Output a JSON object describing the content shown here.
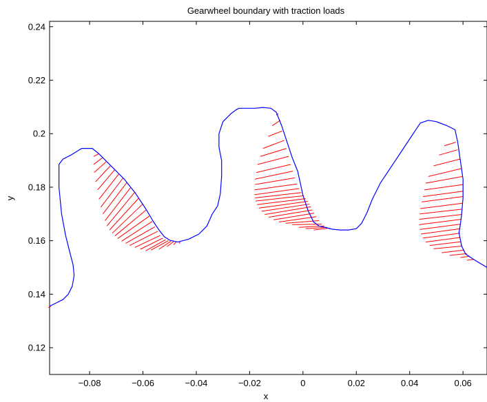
{
  "chart_data": {
    "type": "line",
    "title": "Gearwheel boundary with traction loads",
    "xlabel": "x",
    "ylabel": "y",
    "xlim": [
      -0.095,
      0.069
    ],
    "ylim": [
      0.11,
      0.242
    ],
    "xticks": [
      -0.08,
      -0.06,
      -0.04,
      -0.02,
      0,
      0.02,
      0.04,
      0.06
    ],
    "xtick_labels": [
      "−0.08",
      "−0.06",
      "−0.04",
      "−0.02",
      "0",
      "0.02",
      "0.04",
      "0.06"
    ],
    "yticks": [
      0.12,
      0.14,
      0.16,
      0.18,
      0.2,
      0.22,
      0.24
    ],
    "ytick_labels": [
      "0.12",
      "0.14",
      "0.16",
      "0.18",
      "0.2",
      "0.22",
      "0.24"
    ],
    "grid": false,
    "boundary": {
      "color": "#0000ff",
      "x": [
        -0.095,
        -0.093,
        -0.09,
        -0.088,
        -0.0865,
        -0.0858,
        -0.0862,
        -0.0875,
        -0.089,
        -0.0905,
        -0.0915,
        -0.0915,
        -0.09,
        -0.087,
        -0.083,
        -0.079,
        -0.0765,
        -0.072,
        -0.067,
        -0.063,
        -0.059,
        -0.056,
        -0.054,
        -0.052,
        -0.05,
        -0.047,
        -0.043,
        -0.039,
        -0.036,
        -0.034,
        -0.032,
        -0.031,
        -0.0305,
        -0.0305,
        -0.0315,
        -0.0315,
        -0.03,
        -0.027,
        -0.025,
        -0.024,
        -0.021,
        -0.018,
        -0.015,
        -0.012,
        -0.01,
        -0.008,
        -0.006,
        -0.004,
        -0.002,
        -0.001,
        0,
        0.001,
        0.002,
        0.003,
        0.004,
        0.006,
        0.009,
        0.011,
        0.014,
        0.017,
        0.02,
        0.022,
        0.024,
        0.026,
        0.029,
        0.033,
        0.037,
        0.04,
        0.042,
        0.044,
        0.047,
        0.05,
        0.054,
        0.057,
        0.058,
        0.059,
        0.06,
        0.06,
        0.0595,
        0.059,
        0.0585,
        0.0595,
        0.061,
        0.064,
        0.069
      ],
      "y": [
        0.1355,
        0.1365,
        0.138,
        0.14,
        0.143,
        0.147,
        0.151,
        0.156,
        0.162,
        0.17,
        0.18,
        0.1885,
        0.1905,
        0.192,
        0.1945,
        0.1945,
        0.1925,
        0.188,
        0.183,
        0.178,
        0.172,
        0.167,
        0.164,
        0.1615,
        0.1602,
        0.1595,
        0.1605,
        0.1625,
        0.1655,
        0.17,
        0.173,
        0.1775,
        0.184,
        0.19,
        0.195,
        0.2,
        0.2045,
        0.2075,
        0.209,
        0.2095,
        0.2095,
        0.2095,
        0.2098,
        0.2095,
        0.208,
        0.203,
        0.197,
        0.191,
        0.186,
        0.1815,
        0.177,
        0.174,
        0.171,
        0.169,
        0.167,
        0.1655,
        0.1648,
        0.1643,
        0.164,
        0.164,
        0.1645,
        0.1665,
        0.1705,
        0.1755,
        0.1815,
        0.1875,
        0.1935,
        0.198,
        0.201,
        0.204,
        0.205,
        0.2045,
        0.203,
        0.2015,
        0.197,
        0.19,
        0.183,
        0.176,
        0.17,
        0.166,
        0.163,
        0.158,
        0.155,
        0.153,
        0.15
      ]
    },
    "traction_loads": {
      "color": "#ff0000",
      "segments": [
        [
          -0.0945,
          0.1355,
          -0.0955,
          0.135
        ],
        [
          -0.0765,
          0.1925,
          -0.0785,
          0.1915
        ],
        [
          -0.0752,
          0.191,
          -0.0785,
          0.1885
        ],
        [
          -0.0738,
          0.1895,
          -0.0783,
          0.1855
        ],
        [
          -0.0722,
          0.188,
          -0.0778,
          0.182
        ],
        [
          -0.0706,
          0.1865,
          -0.077,
          0.179
        ],
        [
          -0.069,
          0.185,
          -0.0765,
          0.1755
        ],
        [
          -0.0675,
          0.1834,
          -0.0758,
          0.1725
        ],
        [
          -0.066,
          0.1818,
          -0.075,
          0.17
        ],
        [
          -0.0645,
          0.18,
          -0.0742,
          0.1675
        ],
        [
          -0.063,
          0.1782,
          -0.0735,
          0.1655
        ],
        [
          -0.0615,
          0.176,
          -0.0725,
          0.164
        ],
        [
          -0.06,
          0.1738,
          -0.0715,
          0.1628
        ],
        [
          -0.0588,
          0.1715,
          -0.0705,
          0.1618
        ],
        [
          -0.0576,
          0.1692,
          -0.0695,
          0.1608
        ],
        [
          -0.0565,
          0.1672,
          -0.068,
          0.1598
        ],
        [
          -0.0555,
          0.1652,
          -0.0665,
          0.159
        ],
        [
          -0.0545,
          0.1635,
          -0.065,
          0.1582
        ],
        [
          -0.0535,
          0.162,
          -0.063,
          0.1575
        ],
        [
          -0.0525,
          0.161,
          -0.061,
          0.1568
        ],
        [
          -0.0515,
          0.1604,
          -0.059,
          0.1562
        ],
        [
          -0.0505,
          0.16,
          -0.057,
          0.1565
        ],
        [
          -0.0495,
          0.1598,
          -0.054,
          0.1568
        ],
        [
          -0.0485,
          0.1597,
          -0.051,
          0.1578
        ],
        [
          -0.0475,
          0.1596,
          -0.0485,
          0.1585
        ],
        [
          -0.046,
          0.1595,
          -0.0465,
          0.159
        ],
        [
          -0.0092,
          0.2075,
          -0.01,
          0.207
        ],
        [
          -0.0085,
          0.205,
          -0.0115,
          0.203
        ],
        [
          -0.0078,
          0.201,
          -0.013,
          0.199
        ],
        [
          -0.007,
          0.1975,
          -0.015,
          0.1945
        ],
        [
          -0.0062,
          0.1945,
          -0.016,
          0.1915
        ],
        [
          -0.0054,
          0.1915,
          -0.017,
          0.1885
        ],
        [
          -0.0046,
          0.1885,
          -0.0175,
          0.1855
        ],
        [
          -0.0038,
          0.186,
          -0.018,
          0.183
        ],
        [
          -0.003,
          0.1835,
          -0.018,
          0.181
        ],
        [
          -0.0022,
          0.1812,
          -0.0182,
          0.179
        ],
        [
          -0.0014,
          0.1795,
          -0.0182,
          0.1772
        ],
        [
          -0.0006,
          0.178,
          -0.018,
          0.176
        ],
        [
          0.0002,
          0.1768,
          -0.0178,
          0.1748
        ],
        [
          0.001,
          0.1757,
          -0.0172,
          0.1735
        ],
        [
          0.0018,
          0.1747,
          -0.0165,
          0.1722
        ],
        [
          0.0025,
          0.1737,
          -0.0155,
          0.171
        ],
        [
          0.003,
          0.1727,
          -0.0143,
          0.1698
        ],
        [
          0.0035,
          0.1715,
          -0.0128,
          0.1688
        ],
        [
          0.0042,
          0.1703,
          -0.011,
          0.1678
        ],
        [
          0.005,
          0.169,
          -0.009,
          0.167
        ],
        [
          0.006,
          0.1675,
          -0.0065,
          0.1665
        ],
        [
          0.007,
          0.1662,
          -0.004,
          0.166
        ],
        [
          0.008,
          0.1655,
          -0.0015,
          0.165
        ],
        [
          0.009,
          0.165,
          0.001,
          0.1645
        ],
        [
          0.01,
          0.1647,
          0.004,
          0.164
        ],
        [
          0.0573,
          0.1968,
          0.053,
          0.1955
        ],
        [
          0.058,
          0.194,
          0.051,
          0.192
        ],
        [
          0.0588,
          0.1905,
          0.049,
          0.188
        ],
        [
          0.0595,
          0.187,
          0.047,
          0.184
        ],
        [
          0.0598,
          0.184,
          0.046,
          0.1815
        ],
        [
          0.06,
          0.181,
          0.0455,
          0.179
        ],
        [
          0.06,
          0.1785,
          0.045,
          0.1765
        ],
        [
          0.06,
          0.1765,
          0.0445,
          0.1745
        ],
        [
          0.0598,
          0.174,
          0.044,
          0.172
        ],
        [
          0.0596,
          0.1718,
          0.0438,
          0.17
        ],
        [
          0.0594,
          0.1698,
          0.0436,
          0.168
        ],
        [
          0.0592,
          0.168,
          0.0436,
          0.166
        ],
        [
          0.0591,
          0.1662,
          0.0438,
          0.1642
        ],
        [
          0.059,
          0.1645,
          0.0442,
          0.1625
        ],
        [
          0.0589,
          0.1628,
          0.045,
          0.161
        ],
        [
          0.0589,
          0.1612,
          0.046,
          0.1595
        ],
        [
          0.059,
          0.1596,
          0.0475,
          0.1582
        ],
        [
          0.0595,
          0.158,
          0.049,
          0.157
        ],
        [
          0.0605,
          0.1565,
          0.052,
          0.1555
        ],
        [
          0.0615,
          0.1552,
          0.055,
          0.1545
        ],
        [
          0.0625,
          0.1542,
          0.059,
          0.1537
        ],
        [
          0.064,
          0.153,
          0.0615,
          0.1527
        ]
      ]
    }
  }
}
